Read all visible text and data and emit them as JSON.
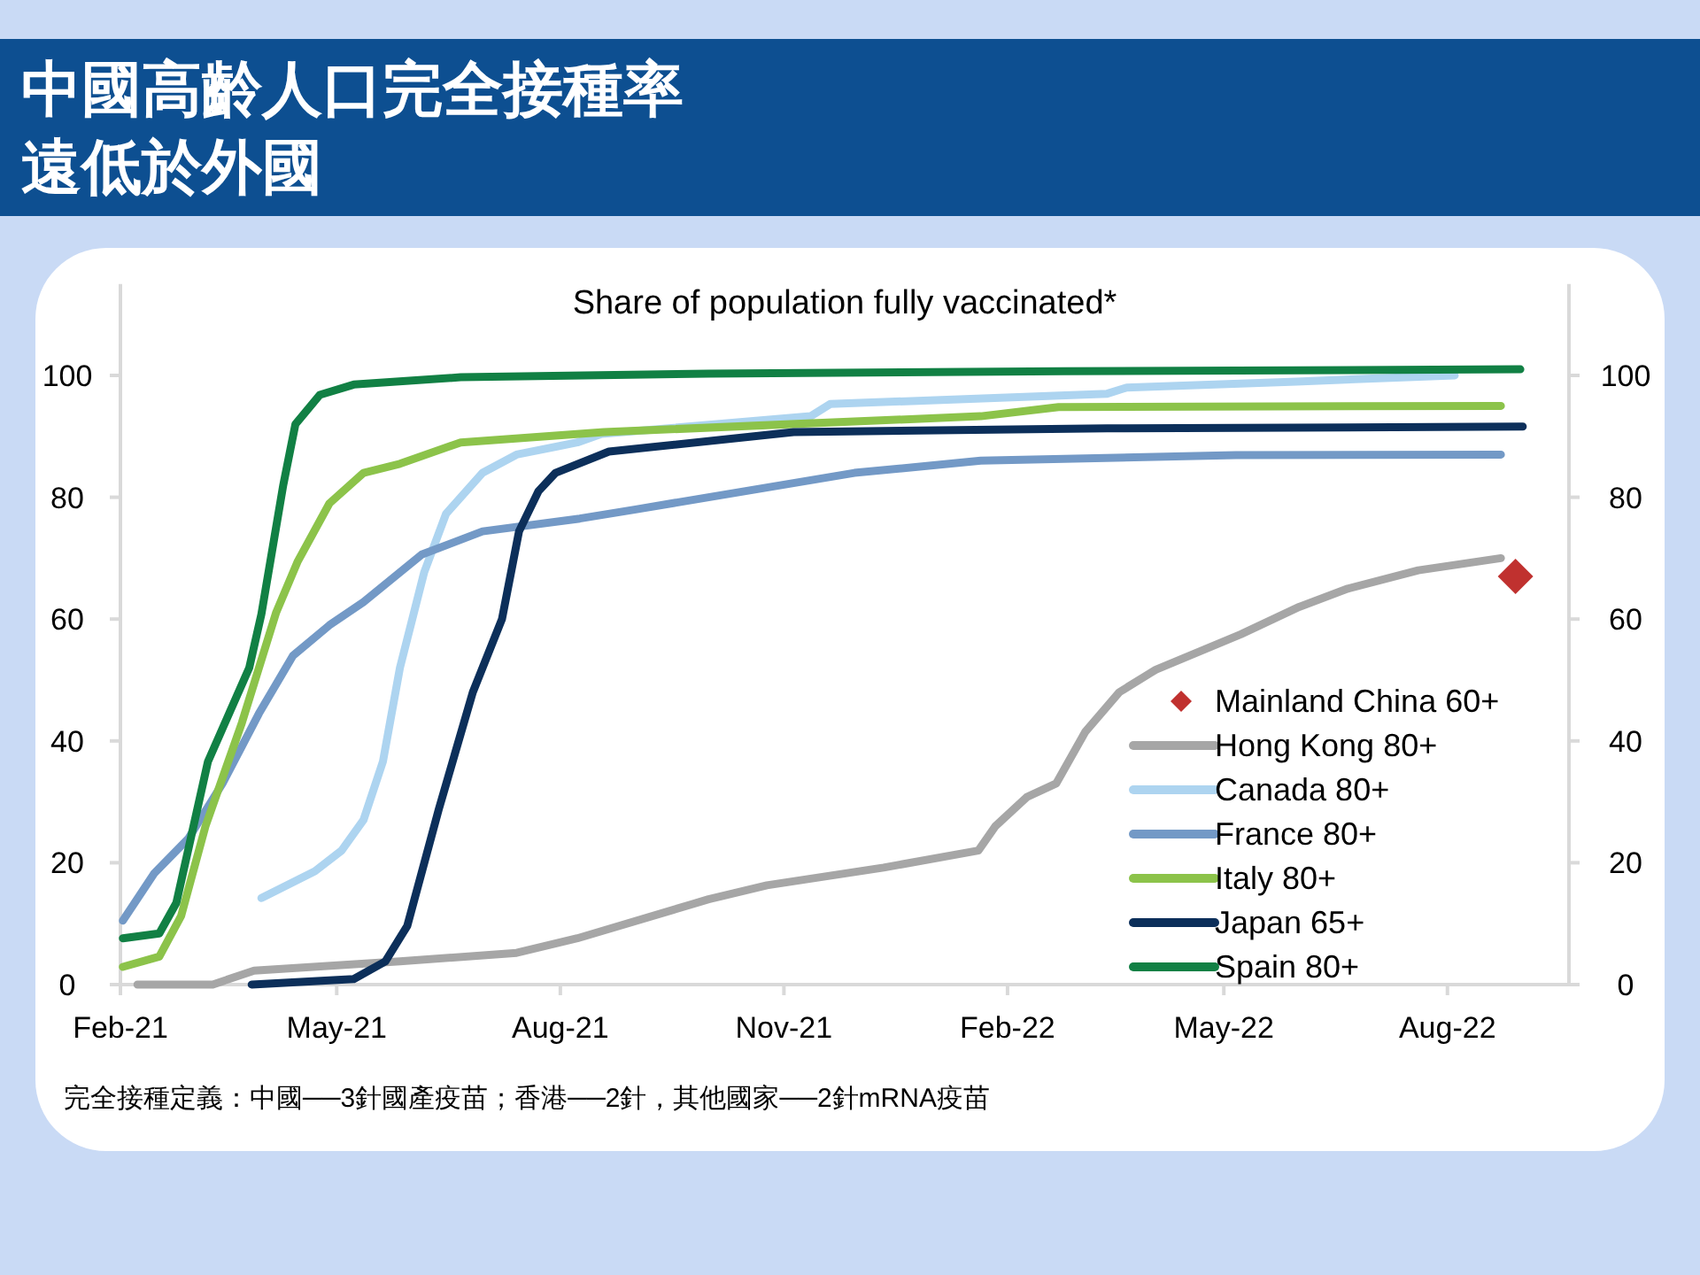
{
  "chart_data": {
    "type": "line",
    "title": "中國高齡人口完全接種率遠低於外國",
    "subtitle": "Share of population fully vaccinated*",
    "annotations": [
      "完全接種定義：中國──3針國產疫苗；香港──2針，其他國家──2針mRNA疫苗"
    ],
    "xlim": [
      "2021-02-01",
      "2022-09-20"
    ],
    "xticks": [
      {
        "value": "2021-02-01",
        "label": "Feb-21"
      },
      {
        "value": "2021-05-01",
        "label": "May-21"
      },
      {
        "value": "2021-08-01",
        "label": "Aug-21"
      },
      {
        "value": "2021-11-01",
        "label": "Nov-21"
      },
      {
        "value": "2022-02-01",
        "label": "Feb-22"
      },
      {
        "value": "2022-05-01",
        "label": "May-22"
      },
      {
        "value": "2022-08-01",
        "label": "Aug-22"
      }
    ],
    "ylim": [
      0,
      115
    ],
    "yticks": [
      0,
      20,
      40,
      60,
      80,
      100
    ],
    "y2lim": [
      0,
      115
    ],
    "y2ticks": [
      0,
      20,
      40,
      60,
      80,
      100
    ],
    "legend": "bottom right",
    "grid": false,
    "line_style": "solid",
    "marker": "none",
    "series": [
      {
        "name": "Mainland China 60+",
        "type": "scatter",
        "marker": "diamond",
        "color": "#c0312f",
        "x": [
          "2022-08-29"
        ],
        "values": [
          67
        ]
      },
      {
        "name": "Hong Kong 80+",
        "color": "#a6a6a6",
        "x": [
          "2021-02-08",
          "2021-03-11",
          "2021-03-28",
          "2021-05-27",
          "2021-07-14",
          "2021-08-08",
          "2021-10-01",
          "2021-10-25",
          "2021-12-12",
          "2022-01-20",
          "2022-01-27",
          "2022-02-09",
          "2022-02-21",
          "2022-03-05",
          "2022-03-19",
          "2022-04-03",
          "2022-05-08",
          "2022-06-01",
          "2022-06-21",
          "2022-07-20",
          "2022-08-23"
        ],
        "values": [
          0,
          0,
          2.3,
          3.8,
          5.2,
          7.6,
          14,
          16.3,
          19.2,
          22,
          26,
          30.8,
          33,
          41.5,
          48,
          51.7,
          57.5,
          62,
          65,
          68,
          70
        ]
      },
      {
        "name": "Canada 80+",
        "color": "#add4f0",
        "x": [
          "2021-03-31",
          "2021-04-22",
          "2021-05-03",
          "2021-05-12",
          "2021-05-20",
          "2021-05-27",
          "2021-06-06",
          "2021-06-15",
          "2021-06-30",
          "2021-07-14",
          "2021-08-08",
          "2021-08-18",
          "2021-11-12",
          "2021-11-20",
          "2022-03-14",
          "2022-03-22",
          "2022-05-31",
          "2022-08-04"
        ],
        "values": [
          14.2,
          18.6,
          22,
          27,
          36.6,
          52,
          67.7,
          77.3,
          84,
          87,
          89,
          90.4,
          93.3,
          95.3,
          97,
          98,
          99,
          100
        ]
      },
      {
        "name": "France 80+",
        "color": "#7399c6",
        "x": [
          "2021-02-02",
          "2021-02-15",
          "2021-03-01",
          "2021-03-15",
          "2021-03-30",
          "2021-04-13",
          "2021-04-28",
          "2021-05-12",
          "2021-06-05",
          "2021-06-30",
          "2021-08-09",
          "2021-09-01",
          "2021-11-30",
          "2022-01-21",
          "2022-05-06",
          "2022-08-23"
        ],
        "values": [
          10.5,
          18.3,
          24,
          33,
          44.5,
          54,
          59,
          62.8,
          70.6,
          74.4,
          76.5,
          78,
          84,
          86,
          86.9,
          87
        ]
      },
      {
        "name": "Italy 80+",
        "color": "#8cc34a",
        "x": [
          "2021-02-02",
          "2021-02-17",
          "2021-02-26",
          "2021-03-08",
          "2021-03-23",
          "2021-04-06",
          "2021-04-15",
          "2021-04-28",
          "2021-05-12",
          "2021-05-27",
          "2021-06-21",
          "2021-08-19",
          "2022-01-21",
          "2022-02-22",
          "2022-08-23"
        ],
        "values": [
          2.9,
          4.6,
          11.3,
          26,
          43,
          61,
          69.5,
          79,
          84,
          85.5,
          89,
          90.7,
          93.3,
          94.8,
          95
        ]
      },
      {
        "name": "Japan 65+",
        "color": "#0c2f5a",
        "x": [
          "2021-03-27",
          "2021-05-08",
          "2021-05-21",
          "2021-05-30",
          "2021-06-12",
          "2021-06-26",
          "2021-07-08",
          "2021-07-15",
          "2021-07-23",
          "2021-07-30",
          "2021-08-21",
          "2021-11-05",
          "2022-03-14",
          "2022-09-01"
        ],
        "values": [
          0,
          0.9,
          3.8,
          9.6,
          28.8,
          48,
          60,
          74.4,
          81,
          84,
          87.5,
          90.7,
          91.3,
          91.6
        ]
      },
      {
        "name": "Spain 80+",
        "color": "#118044",
        "x": [
          "2021-02-02",
          "2021-02-17",
          "2021-02-24",
          "2021-03-09",
          "2021-03-26",
          "2021-03-31",
          "2021-04-09",
          "2021-04-14",
          "2021-04-24",
          "2021-05-08",
          "2021-06-21",
          "2021-10-01",
          "2022-02-24",
          "2022-08-31"
        ],
        "values": [
          7.6,
          8.4,
          13.4,
          36.6,
          52,
          60.8,
          82,
          92,
          96.8,
          98.5,
          99.7,
          100.3,
          100.7,
          101
        ]
      }
    ]
  }
}
